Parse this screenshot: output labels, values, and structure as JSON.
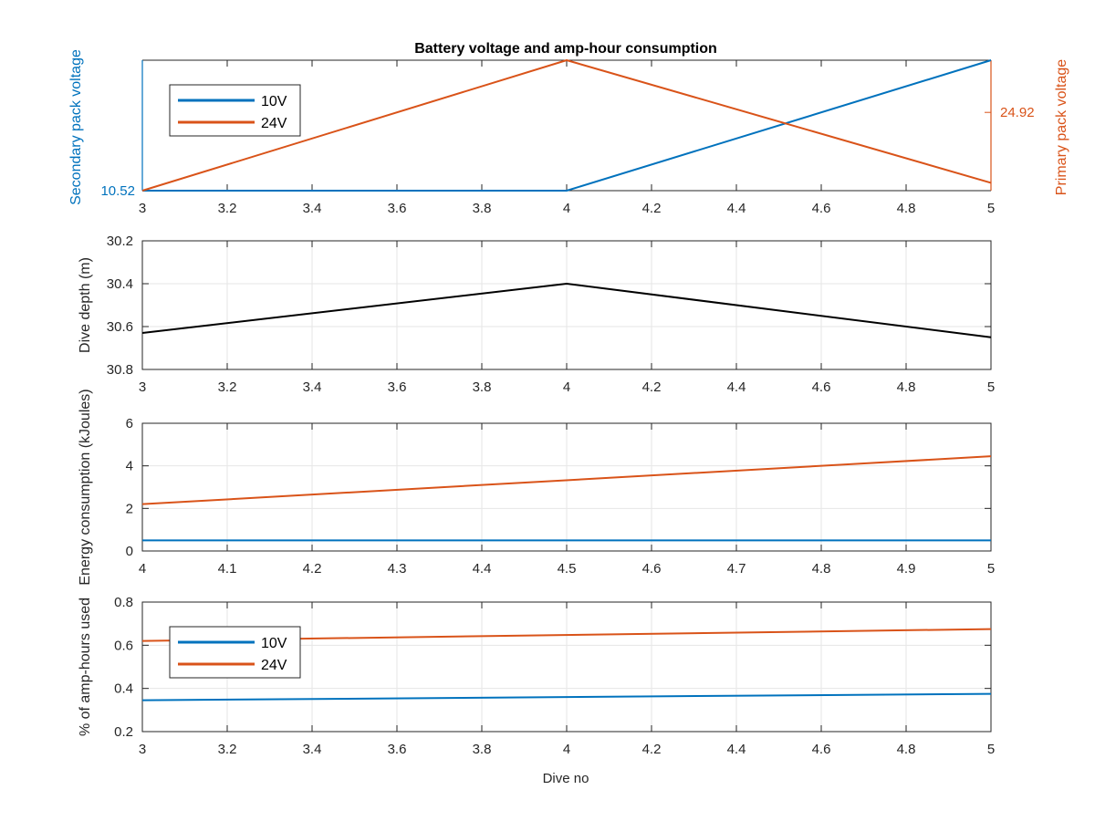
{
  "figure": {
    "title": "Battery voltage and amp-hour consumption",
    "xlabel": "Dive no"
  },
  "colors": {
    "blue": "#0072BD",
    "orange": "#D95319",
    "black": "#000000",
    "grid": "#e6e6e6"
  },
  "chart_data": [
    {
      "type": "line",
      "panel": 1,
      "title": "Battery voltage and amp-hour consumption",
      "ylabel_left": "Secondary pack voltage",
      "ylabel_right": "Primary pack voltage",
      "x": [
        3,
        4,
        5
      ],
      "xlim": [
        3,
        5
      ],
      "xticks": [
        "3",
        "3.2",
        "3.4",
        "3.6",
        "3.8",
        "4",
        "4.2",
        "4.4",
        "4.6",
        "4.8",
        "5"
      ],
      "ylim_left": [
        10.52,
        10.54
      ],
      "yticks_left": [
        "10.52"
      ],
      "ylim_right": [
        24.905,
        24.93
      ],
      "yticks_right": [
        "24.92"
      ],
      "grid": false,
      "legend": "top-left",
      "series": [
        {
          "name": "10V",
          "axis": "left",
          "color": "#0072BD",
          "values": [
            10.52,
            10.52,
            10.54
          ]
        },
        {
          "name": "24V",
          "axis": "right",
          "color": "#D95319",
          "values": [
            24.905,
            24.93,
            24.9065
          ]
        }
      ]
    },
    {
      "type": "line",
      "panel": 2,
      "ylabel": "Dive depth (m)",
      "y_reversed": true,
      "x": [
        3,
        4,
        5
      ],
      "xlim": [
        3,
        5
      ],
      "xticks": [
        "3",
        "3.2",
        "3.4",
        "3.6",
        "3.8",
        "4",
        "4.2",
        "4.4",
        "4.6",
        "4.8",
        "5"
      ],
      "ylim": [
        30.2,
        30.8
      ],
      "yticks": [
        "30.2",
        "30.4",
        "30.6",
        "30.8"
      ],
      "grid": true,
      "series": [
        {
          "color": "#000000",
          "values": [
            30.63,
            30.4,
            30.65
          ]
        }
      ]
    },
    {
      "type": "line",
      "panel": 3,
      "ylabel": "Energy consumption (kJoules)",
      "x": [
        4,
        5
      ],
      "xlim": [
        4,
        5
      ],
      "xticks": [
        "4",
        "4.1",
        "4.2",
        "4.3",
        "4.4",
        "4.5",
        "4.6",
        "4.7",
        "4.8",
        "4.9",
        "5"
      ],
      "ylim": [
        0,
        6
      ],
      "yticks": [
        "0",
        "2",
        "4",
        "6"
      ],
      "grid": true,
      "series": [
        {
          "color": "#D95319",
          "values": [
            2.2,
            4.45
          ]
        },
        {
          "color": "#0072BD",
          "values": [
            0.5,
            0.5
          ]
        }
      ]
    },
    {
      "type": "line",
      "panel": 4,
      "ylabel": "% of amp-hours used",
      "xlabel": "Dive no",
      "x": [
        3,
        5
      ],
      "xlim": [
        3,
        5
      ],
      "xticks": [
        "3",
        "3.2",
        "3.4",
        "3.6",
        "3.8",
        "4",
        "4.2",
        "4.4",
        "4.6",
        "4.8",
        "5"
      ],
      "ylim": [
        0.2,
        0.8
      ],
      "yticks": [
        "0.2",
        "0.4",
        "0.6",
        "0.8"
      ],
      "grid": true,
      "legend": "top-left",
      "series": [
        {
          "name": "10V",
          "color": "#0072BD",
          "values": [
            0.345,
            0.375
          ]
        },
        {
          "name": "24V",
          "color": "#D95319",
          "values": [
            0.62,
            0.675
          ]
        }
      ]
    }
  ]
}
